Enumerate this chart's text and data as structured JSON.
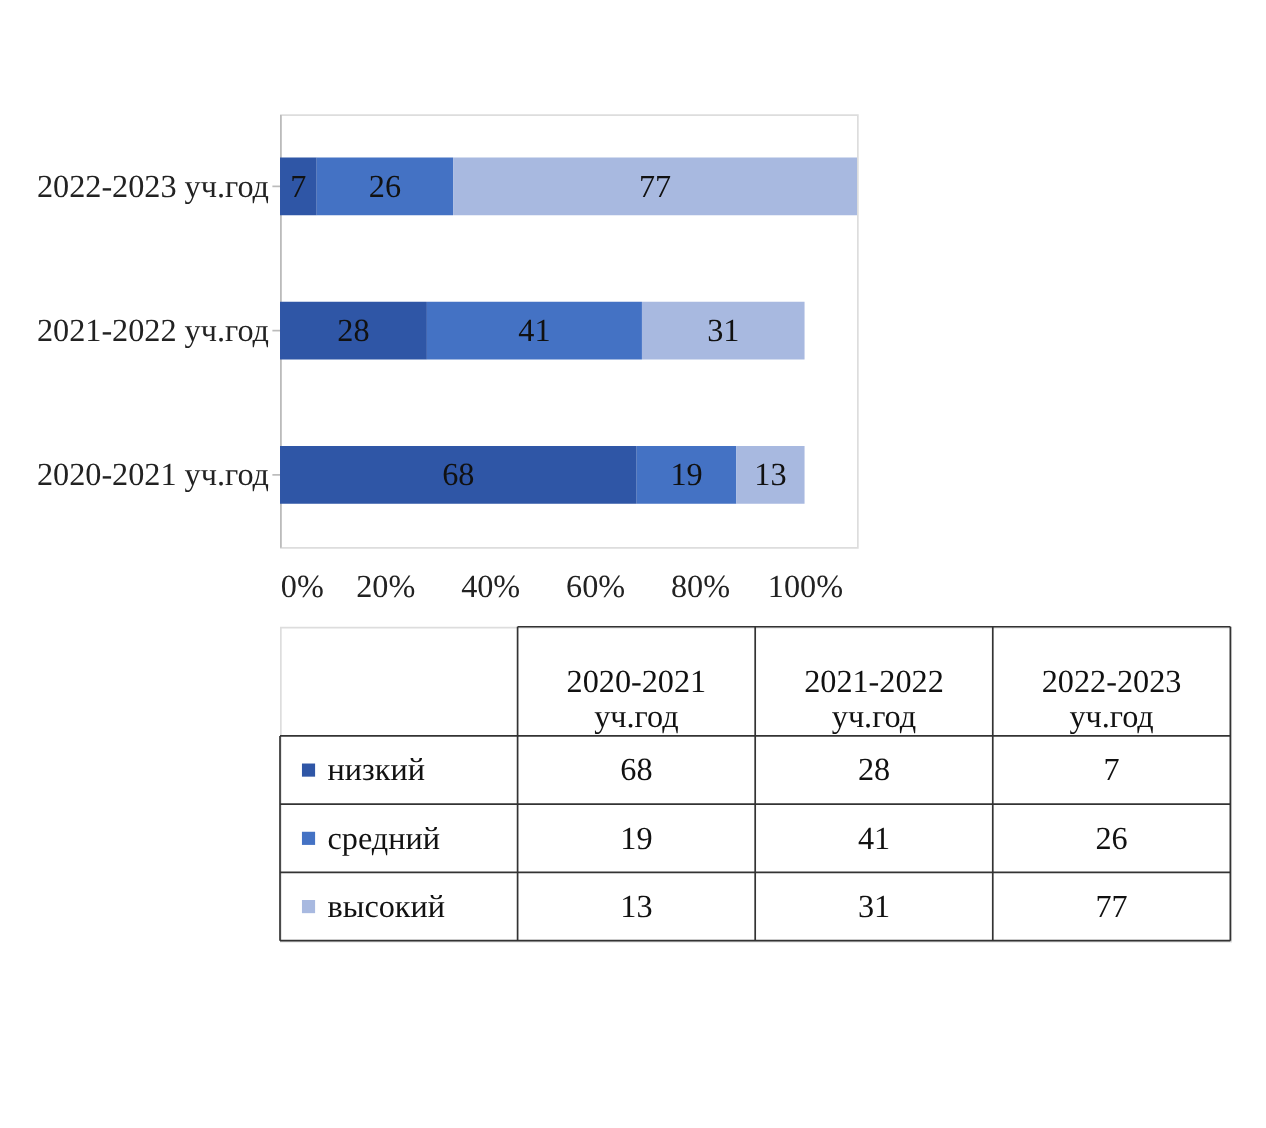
{
  "chart_data": {
    "type": "bar",
    "orientation": "horizontal",
    "stacked": true,
    "data_labels": true,
    "legend": "bottom",
    "grid": false,
    "categories": [
      "2022-2023 уч.год",
      "2021-2022 уч.год",
      "2020-2021 уч.год"
    ],
    "series": [
      {
        "name": "низкий",
        "color": "#2f56a6",
        "values": [
          7,
          28,
          68
        ],
        "value_labels": [
          "7",
          "28",
          "68"
        ]
      },
      {
        "name": "средний",
        "color": "#4472c4",
        "values": [
          26,
          41,
          19
        ],
        "value_labels": [
          "26",
          "41",
          "19"
        ]
      },
      {
        "name": "высокий",
        "color": "#a8b9e0",
        "values": [
          77,
          31,
          13
        ],
        "value_labels": [
          "77",
          "31",
          "13"
        ]
      }
    ],
    "annotations": [
      "68",
      "28",
      "7",
      "19",
      "41",
      "26",
      "13",
      "31",
      "77"
    ],
    "xlim": [
      0,
      110
    ],
    "xticks": [
      {
        "value": 0,
        "label": "0%"
      },
      {
        "value": 20,
        "label": "20%"
      },
      {
        "value": 40,
        "label": "40%"
      },
      {
        "value": 60,
        "label": "60%"
      },
      {
        "value": 80,
        "label": "80%"
      },
      {
        "value": 100,
        "label": "100%"
      }
    ]
  }
}
